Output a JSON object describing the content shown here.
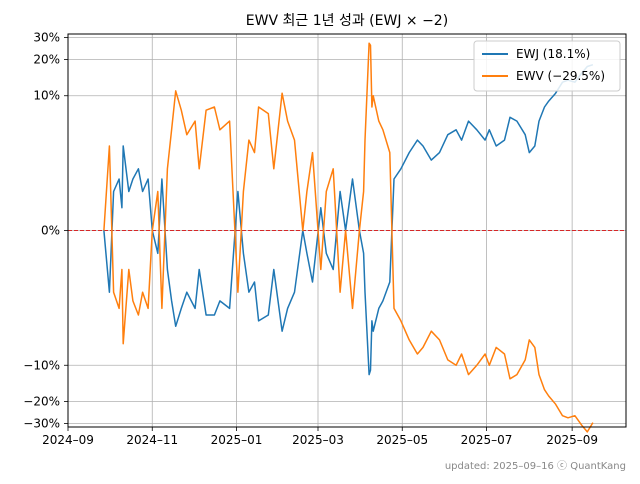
{
  "chart_data": {
    "type": "line",
    "title": "EWV 최근 1년 성과 (EWJ × −2)",
    "xlabel": "",
    "ylabel": "",
    "x_range": [
      "2024-09-01",
      "2025-10-10"
    ],
    "x_ticks": [
      {
        "date": "2024-09-01",
        "label": "2024–09"
      },
      {
        "date": "2024-11-01",
        "label": "2024–11"
      },
      {
        "date": "2025-01-01",
        "label": "2025–01"
      },
      {
        "date": "2025-03-01",
        "label": "2025–03"
      },
      {
        "date": "2025-05-01",
        "label": "2025–05"
      },
      {
        "date": "2025-07-01",
        "label": "2025–07"
      },
      {
        "date": "2025-09-01",
        "label": "2025–09"
      }
    ],
    "y_scale": "symlog",
    "y_range": [
      -32,
      32
    ],
    "y_ticks": [
      {
        "value": 30,
        "label": "30%"
      },
      {
        "value": 20,
        "label": "20%"
      },
      {
        "value": 10,
        "label": "10%"
      },
      {
        "value": 0,
        "label": "0%"
      },
      {
        "value": -10,
        "label": "−10%"
      },
      {
        "value": -20,
        "label": "−20%"
      },
      {
        "value": -30,
        "label": "−30%"
      }
    ],
    "grid": true,
    "legend_position": "top-right",
    "zero_line": {
      "value": 0,
      "color": "#d62728",
      "style": "dashed"
    },
    "series": [
      {
        "name": "EWJ (18.1%)",
        "color": "#1f77b4",
        "points": [
          [
            "2024-09-27",
            0.0
          ],
          [
            "2024-10-01",
            -2.0
          ],
          [
            "2024-10-04",
            1.0
          ],
          [
            "2024-10-08",
            1.5
          ],
          [
            "2024-10-10",
            0.5
          ],
          [
            "2024-10-11",
            3.5
          ],
          [
            "2024-10-15",
            1.0
          ],
          [
            "2024-10-18",
            1.5
          ],
          [
            "2024-10-22",
            2.0
          ],
          [
            "2024-10-25",
            1.0
          ],
          [
            "2024-10-29",
            1.5
          ],
          [
            "2024-11-01",
            0.0
          ],
          [
            "2024-11-05",
            -0.5
          ],
          [
            "2024-11-08",
            1.5
          ],
          [
            "2024-11-12",
            -1.0
          ],
          [
            "2024-11-15",
            -2.5
          ],
          [
            "2024-11-18",
            -4.5
          ],
          [
            "2024-11-22",
            -3.0
          ],
          [
            "2024-11-26",
            -2.0
          ],
          [
            "2024-12-02",
            -3.0
          ],
          [
            "2024-12-05",
            -1.0
          ],
          [
            "2024-12-10",
            -3.5
          ],
          [
            "2024-12-16",
            -3.5
          ],
          [
            "2024-12-20",
            -2.5
          ],
          [
            "2024-12-27",
            -3.0
          ],
          [
            "2025-01-02",
            1.0
          ],
          [
            "2025-01-06",
            -0.5
          ],
          [
            "2025-01-10",
            -2.0
          ],
          [
            "2025-01-14",
            -1.5
          ],
          [
            "2025-01-17",
            -4.0
          ],
          [
            "2025-01-24",
            -3.5
          ],
          [
            "2025-01-28",
            -1.0
          ],
          [
            "2025-02-03",
            -5.0
          ],
          [
            "2025-02-07",
            -3.0
          ],
          [
            "2025-02-12",
            -2.0
          ],
          [
            "2025-02-18",
            0.0
          ],
          [
            "2025-02-21",
            -0.5
          ],
          [
            "2025-02-25",
            -1.5
          ],
          [
            "2025-03-03",
            0.5
          ],
          [
            "2025-03-07",
            -0.5
          ],
          [
            "2025-03-12",
            -1.0
          ],
          [
            "2025-03-17",
            1.0
          ],
          [
            "2025-03-21",
            0.0
          ],
          [
            "2025-03-26",
            1.5
          ],
          [
            "2025-03-31",
            0.0
          ],
          [
            "2025-04-03",
            -0.5
          ],
          [
            "2025-04-04",
            -2.0
          ],
          [
            "2025-04-07",
            -12.0
          ],
          [
            "2025-04-08",
            -11.0
          ],
          [
            "2025-04-09",
            -4.0
          ],
          [
            "2025-04-10",
            -5.0
          ],
          [
            "2025-04-14",
            -3.0
          ],
          [
            "2025-04-17",
            -2.5
          ],
          [
            "2025-04-22",
            -1.5
          ],
          [
            "2025-04-25",
            1.5
          ],
          [
            "2025-04-30",
            2.0
          ],
          [
            "2025-05-06",
            3.0
          ],
          [
            "2025-05-12",
            4.0
          ],
          [
            "2025-05-16",
            3.5
          ],
          [
            "2025-05-22",
            2.5
          ],
          [
            "2025-05-28",
            3.0
          ],
          [
            "2025-06-03",
            4.5
          ],
          [
            "2025-06-09",
            5.0
          ],
          [
            "2025-06-13",
            4.0
          ],
          [
            "2025-06-18",
            6.0
          ],
          [
            "2025-06-24",
            5.0
          ],
          [
            "2025-06-30",
            4.0
          ],
          [
            "2025-07-03",
            5.0
          ],
          [
            "2025-07-08",
            3.5
          ],
          [
            "2025-07-14",
            4.0
          ],
          [
            "2025-07-18",
            6.5
          ],
          [
            "2025-07-23",
            6.0
          ],
          [
            "2025-07-29",
            4.5
          ],
          [
            "2025-08-01",
            3.0
          ],
          [
            "2025-08-05",
            3.5
          ],
          [
            "2025-08-08",
            6.0
          ],
          [
            "2025-08-12",
            8.0
          ],
          [
            "2025-08-15",
            9.0
          ],
          [
            "2025-08-20",
            10.5
          ],
          [
            "2025-08-25",
            13.0
          ],
          [
            "2025-08-29",
            13.5
          ],
          [
            "2025-09-03",
            13.0
          ],
          [
            "2025-09-08",
            15.5
          ],
          [
            "2025-09-12",
            17.5
          ],
          [
            "2025-09-16",
            18.1
          ]
        ]
      },
      {
        "name": "EWV (−29.5%)",
        "color": "#ff7f0e",
        "points": [
          [
            "2024-09-27",
            0.0
          ],
          [
            "2024-10-01",
            3.5
          ],
          [
            "2024-10-04",
            -2.0
          ],
          [
            "2024-10-08",
            -3.0
          ],
          [
            "2024-10-10",
            -1.0
          ],
          [
            "2024-10-11",
            -6.5
          ],
          [
            "2024-10-15",
            -1.0
          ],
          [
            "2024-10-18",
            -2.5
          ],
          [
            "2024-10-22",
            -3.5
          ],
          [
            "2024-10-25",
            -2.0
          ],
          [
            "2024-10-29",
            -3.0
          ],
          [
            "2024-11-01",
            0.0
          ],
          [
            "2024-11-05",
            1.0
          ],
          [
            "2024-11-08",
            -3.0
          ],
          [
            "2024-11-12",
            2.0
          ],
          [
            "2024-11-15",
            5.0
          ],
          [
            "2024-11-18",
            11.0
          ],
          [
            "2024-11-22",
            7.5
          ],
          [
            "2024-11-26",
            4.5
          ],
          [
            "2024-12-02",
            6.0
          ],
          [
            "2024-12-05",
            2.0
          ],
          [
            "2024-12-10",
            7.5
          ],
          [
            "2024-12-16",
            8.0
          ],
          [
            "2024-12-20",
            5.0
          ],
          [
            "2024-12-27",
            6.0
          ],
          [
            "2025-01-02",
            -2.0
          ],
          [
            "2025-01-06",
            1.0
          ],
          [
            "2025-01-10",
            4.0
          ],
          [
            "2025-01-14",
            3.0
          ],
          [
            "2025-01-17",
            8.0
          ],
          [
            "2025-01-24",
            7.0
          ],
          [
            "2025-01-28",
            2.0
          ],
          [
            "2025-02-03",
            10.5
          ],
          [
            "2025-02-07",
            6.0
          ],
          [
            "2025-02-12",
            4.0
          ],
          [
            "2025-02-18",
            0.0
          ],
          [
            "2025-02-21",
            1.0
          ],
          [
            "2025-02-25",
            3.0
          ],
          [
            "2025-03-03",
            -1.0
          ],
          [
            "2025-03-07",
            1.0
          ],
          [
            "2025-03-12",
            2.0
          ],
          [
            "2025-03-17",
            -2.0
          ],
          [
            "2025-03-21",
            0.0
          ],
          [
            "2025-03-26",
            -3.0
          ],
          [
            "2025-03-31",
            0.0
          ],
          [
            "2025-04-03",
            1.0
          ],
          [
            "2025-04-04",
            4.0
          ],
          [
            "2025-04-07",
            27.0
          ],
          [
            "2025-04-08",
            26.0
          ],
          [
            "2025-04-09",
            8.0
          ],
          [
            "2025-04-10",
            10.0
          ],
          [
            "2025-04-14",
            6.0
          ],
          [
            "2025-04-17",
            5.0
          ],
          [
            "2025-04-22",
            3.0
          ],
          [
            "2025-04-25",
            -3.0
          ],
          [
            "2025-04-30",
            -4.0
          ],
          [
            "2025-05-06",
            -6.0
          ],
          [
            "2025-05-12",
            -8.0
          ],
          [
            "2025-05-16",
            -7.0
          ],
          [
            "2025-05-22",
            -5.0
          ],
          [
            "2025-05-28",
            -6.0
          ],
          [
            "2025-06-03",
            -9.0
          ],
          [
            "2025-06-09",
            -10.0
          ],
          [
            "2025-06-13",
            -8.0
          ],
          [
            "2025-06-18",
            -12.0
          ],
          [
            "2025-06-24",
            -10.0
          ],
          [
            "2025-06-30",
            -8.0
          ],
          [
            "2025-07-03",
            -10.0
          ],
          [
            "2025-07-08",
            -7.0
          ],
          [
            "2025-07-14",
            -8.0
          ],
          [
            "2025-07-18",
            -13.0
          ],
          [
            "2025-07-23",
            -12.0
          ],
          [
            "2025-07-29",
            -9.0
          ],
          [
            "2025-08-01",
            -6.0
          ],
          [
            "2025-08-05",
            -7.0
          ],
          [
            "2025-08-08",
            -12.0
          ],
          [
            "2025-08-12",
            -16.0
          ],
          [
            "2025-08-15",
            -18.0
          ],
          [
            "2025-08-20",
            -21.0
          ],
          [
            "2025-08-25",
            -26.0
          ],
          [
            "2025-08-29",
            -27.0
          ],
          [
            "2025-09-03",
            -26.0
          ],
          [
            "2025-09-08",
            -31.0
          ],
          [
            "2025-09-12",
            -35.0
          ],
          [
            "2025-09-16",
            -29.5
          ]
        ]
      }
    ]
  },
  "footer": "updated: 2025–09–16 ⓒ QuantKang"
}
